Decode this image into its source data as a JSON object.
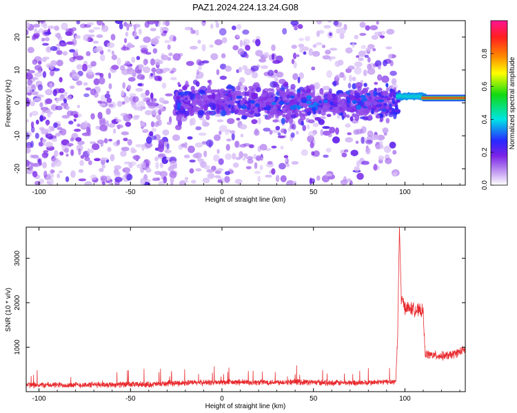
{
  "title": "PAZ1.2024.224.13.24.G08",
  "colors": {
    "snr_line": "#e8282c",
    "spectrogram_base": "#7a22e6",
    "frame": "#000000"
  },
  "chart_data": [
    {
      "type": "heatmap",
      "xlabel": "Height of straight line (km)",
      "ylabel": "Frequency (Hz)",
      "xlim": [
        -107,
        133
      ],
      "ylim": [
        -25,
        25
      ],
      "x_ticks": [
        -100,
        -50,
        0,
        50,
        100
      ],
      "y_ticks": [
        -20,
        -10,
        0,
        10,
        20
      ],
      "grid": false,
      "colorbar": {
        "label": "Normalized spectral amplitude",
        "range": [
          0,
          1
        ],
        "ticks": [
          0.0,
          0.2,
          0.4,
          0.6,
          0.8
        ],
        "colormap": [
          "#ffffff",
          "#7a22e6",
          "#2828ff",
          "#00e5e5",
          "#11d911",
          "#ffff00",
          "#ff8c00",
          "#ff1f1f",
          "#ff1493"
        ]
      },
      "bands": [
        {
          "x": [
            -107,
            -25
          ],
          "freq_spread": 25,
          "amplitude": 0.15,
          "note_visible": false
        },
        {
          "x": [
            -25,
            95
          ],
          "freq_center": 0,
          "freq_halfwidth": 4,
          "amplitude": 0.2
        },
        {
          "x": [
            95,
            110
          ],
          "freq_center": 2,
          "freq_halfwidth": 1,
          "amplitude": 0.4
        },
        {
          "x": [
            110,
            133
          ],
          "freq_center": 1.5,
          "freq_halfwidth": 1,
          "amplitude": 0.85
        }
      ]
    },
    {
      "type": "line",
      "xlabel": "Height of straight line (km)",
      "ylabel": "SNR (10 * v/v)",
      "xlim": [
        -107,
        133
      ],
      "ylim": [
        0,
        3700
      ],
      "x_ticks": [
        -100,
        -50,
        0,
        50,
        100
      ],
      "y_ticks": [
        1000,
        2000,
        3000
      ],
      "grid": false,
      "series": [
        {
          "x": [
            -107,
            -100,
            -80,
            -60,
            -40,
            -20,
            0,
            20,
            40,
            60,
            80,
            95,
            96,
            97,
            98,
            100,
            105,
            110,
            111,
            115,
            120,
            125,
            130,
            133
          ],
          "values": [
            150,
            150,
            150,
            160,
            160,
            200,
            210,
            210,
            220,
            200,
            200,
            230,
            1200,
            3700,
            2100,
            1900,
            1850,
            1800,
            850,
            820,
            800,
            820,
            900,
            950
          ]
        }
      ]
    }
  ]
}
